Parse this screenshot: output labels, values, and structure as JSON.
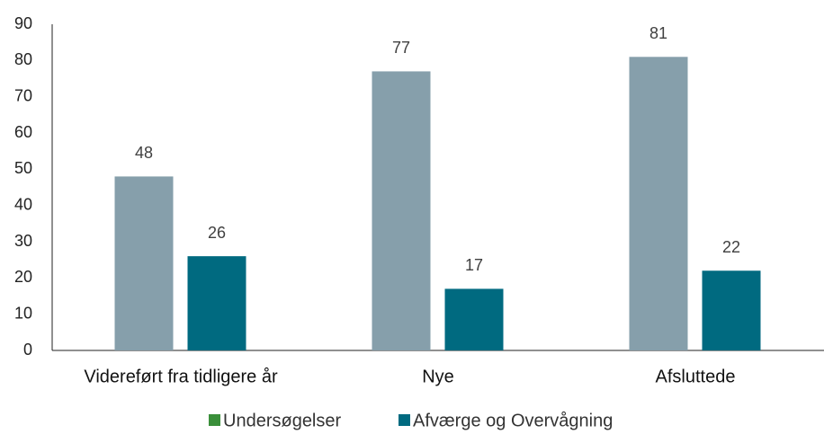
{
  "chart_data": {
    "type": "bar",
    "categories": [
      "Videreført fra tidligere år",
      "Nye",
      "Afsluttede"
    ],
    "series": [
      {
        "name": "Undersøgelser",
        "color": "#869fab",
        "legend_color": "#3a8f3a",
        "values": [
          48,
          77,
          81
        ]
      },
      {
        "name": "Afværge og Overvågning",
        "color": "#006a80",
        "legend_color": "#006a80",
        "values": [
          26,
          17,
          22
        ]
      }
    ],
    "ylim": [
      0,
      90
    ],
    "yticks": [
      0,
      10,
      20,
      30,
      40,
      50,
      60,
      70,
      80,
      90
    ],
    "grid": false,
    "legend": "bottom"
  }
}
